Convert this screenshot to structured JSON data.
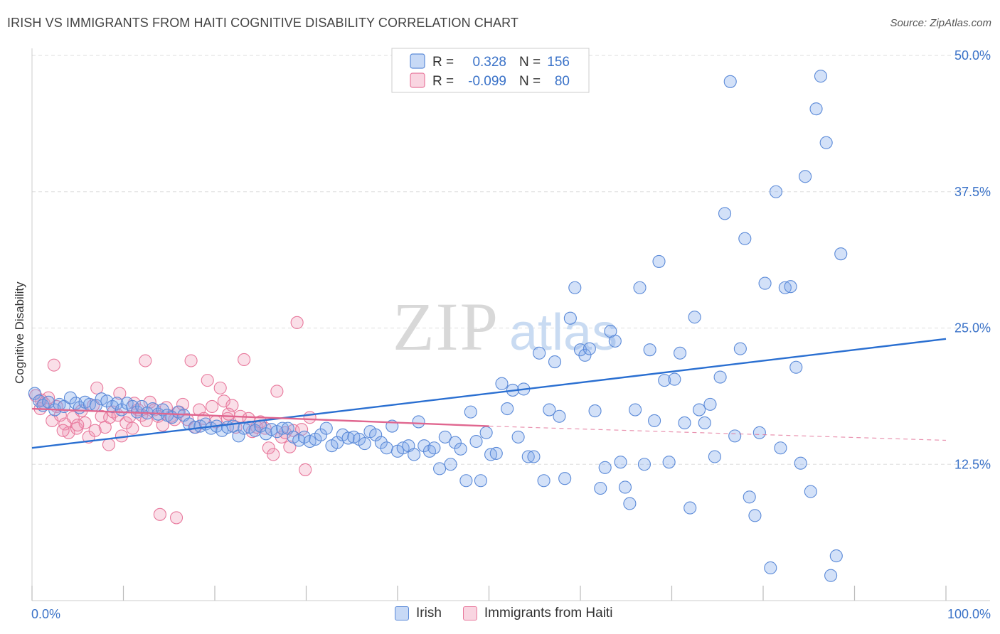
{
  "title": "IRISH VS IMMIGRANTS FROM HAITI COGNITIVE DISABILITY CORRELATION CHART",
  "source": "Source: ZipAtlas.com",
  "watermark": {
    "zip": "ZIP",
    "atlas": "atlas"
  },
  "colors": {
    "blue": "#5b8ad8",
    "blue_fill": "rgba(130,170,235,0.35)",
    "blue_line": "#2a6fd1",
    "pink": "#e8789c",
    "pink_fill": "rgba(240,150,180,0.30)",
    "pink_line": "#e0668f",
    "grid": "#dddddd",
    "tick_label": "#3a72c8"
  },
  "stats_legend": {
    "rows": [
      {
        "r_label": "R =",
        "r_value": "0.328",
        "n_label": "N =",
        "n_value": "156",
        "series": "blue"
      },
      {
        "r_label": "R =",
        "r_value": "-0.099",
        "n_label": "N =",
        "n_value": "80",
        "series": "pink"
      }
    ]
  },
  "chart_data": {
    "type": "scatter",
    "title": "IRISH VS IMMIGRANTS FROM HAITI COGNITIVE DISABILITY CORRELATION CHART",
    "ylabel": "Cognitive Disability",
    "xlim": [
      0,
      100
    ],
    "ylim": [
      0,
      50
    ],
    "x_tick_labels": [
      "0.0%",
      "100.0%"
    ],
    "y_ticks": [
      12.5,
      25.0,
      37.5,
      50.0
    ],
    "y_tick_labels": [
      "12.5%",
      "25.0%",
      "37.5%",
      "50.0%"
    ],
    "grid": true,
    "legend_placement": "bottom-center",
    "series": [
      {
        "name": "Irish",
        "color": "blue",
        "trend": {
          "x": [
            0,
            100
          ],
          "y": [
            14.0,
            24.0
          ]
        },
        "points": [
          [
            0.3,
            19.0
          ],
          [
            0.8,
            18.3
          ],
          [
            1.2,
            17.9
          ],
          [
            1.8,
            18.2
          ],
          [
            2.5,
            17.5
          ],
          [
            3.0,
            18.0
          ],
          [
            3.5,
            17.8
          ],
          [
            4.2,
            18.6
          ],
          [
            4.8,
            18.1
          ],
          [
            5.2,
            17.7
          ],
          [
            5.8,
            18.2
          ],
          [
            6.3,
            18.0
          ],
          [
            7.0,
            17.9
          ],
          [
            7.6,
            18.5
          ],
          [
            8.2,
            18.3
          ],
          [
            8.8,
            17.8
          ],
          [
            9.3,
            18.1
          ],
          [
            9.8,
            17.5
          ],
          [
            10.4,
            18.1
          ],
          [
            11.0,
            17.8
          ],
          [
            11.5,
            17.3
          ],
          [
            12.0,
            17.8
          ],
          [
            12.6,
            17.2
          ],
          [
            13.2,
            17.6
          ],
          [
            13.8,
            17.1
          ],
          [
            14.3,
            17.5
          ],
          [
            14.8,
            17.0
          ],
          [
            15.3,
            16.8
          ],
          [
            16.0,
            17.3
          ],
          [
            16.6,
            17.0
          ],
          [
            17.2,
            16.2
          ],
          [
            17.8,
            15.9
          ],
          [
            18.4,
            16.0
          ],
          [
            19.0,
            16.2
          ],
          [
            19.6,
            15.8
          ],
          [
            20.2,
            16.0
          ],
          [
            20.8,
            15.6
          ],
          [
            21.4,
            15.9
          ],
          [
            22.0,
            16.0
          ],
          [
            22.6,
            15.1
          ],
          [
            23.2,
            15.8
          ],
          [
            23.8,
            15.9
          ],
          [
            24.4,
            15.6
          ],
          [
            25.0,
            16.0
          ],
          [
            25.6,
            15.3
          ],
          [
            26.2,
            15.7
          ],
          [
            26.8,
            15.5
          ],
          [
            27.4,
            15.8
          ],
          [
            28.0,
            15.8
          ],
          [
            28.6,
            15.0
          ],
          [
            29.2,
            14.7
          ],
          [
            29.8,
            15.0
          ],
          [
            30.4,
            14.6
          ],
          [
            31.0,
            14.8
          ],
          [
            31.6,
            15.2
          ],
          [
            32.2,
            15.8
          ],
          [
            32.8,
            14.2
          ],
          [
            33.4,
            14.5
          ],
          [
            34.0,
            15.2
          ],
          [
            34.6,
            14.9
          ],
          [
            35.2,
            15.0
          ],
          [
            35.8,
            14.8
          ],
          [
            36.4,
            14.4
          ],
          [
            37.0,
            15.5
          ],
          [
            37.6,
            15.2
          ],
          [
            38.2,
            14.5
          ],
          [
            38.8,
            14.0
          ],
          [
            39.4,
            16.0
          ],
          [
            40.0,
            13.7
          ],
          [
            40.6,
            14.0
          ],
          [
            41.2,
            14.2
          ],
          [
            41.8,
            13.4
          ],
          [
            42.3,
            16.4
          ],
          [
            42.9,
            14.2
          ],
          [
            43.5,
            13.7
          ],
          [
            44.0,
            14.0
          ],
          [
            44.6,
            12.1
          ],
          [
            45.2,
            15.0
          ],
          [
            45.8,
            12.5
          ],
          [
            46.3,
            14.5
          ],
          [
            46.9,
            13.9
          ],
          [
            47.5,
            11.0
          ],
          [
            48.0,
            17.3
          ],
          [
            48.6,
            14.6
          ],
          [
            49.1,
            11.0
          ],
          [
            49.7,
            15.4
          ],
          [
            50.2,
            13.4
          ],
          [
            50.8,
            13.5
          ],
          [
            51.4,
            19.9
          ],
          [
            52.0,
            17.6
          ],
          [
            52.6,
            19.3
          ],
          [
            53.2,
            15.0
          ],
          [
            53.8,
            19.4
          ],
          [
            54.3,
            13.2
          ],
          [
            54.9,
            13.2
          ],
          [
            55.5,
            22.7
          ],
          [
            56.0,
            11.0
          ],
          [
            56.6,
            17.5
          ],
          [
            57.2,
            21.9
          ],
          [
            57.7,
            16.9
          ],
          [
            58.3,
            11.2
          ],
          [
            58.9,
            25.9
          ],
          [
            59.4,
            28.7
          ],
          [
            60.0,
            23.0
          ],
          [
            60.5,
            22.5
          ],
          [
            61.0,
            23.1
          ],
          [
            61.6,
            17.4
          ],
          [
            62.2,
            10.3
          ],
          [
            62.7,
            12.2
          ],
          [
            63.3,
            24.7
          ],
          [
            63.8,
            23.8
          ],
          [
            64.4,
            12.7
          ],
          [
            64.9,
            10.4
          ],
          [
            65.4,
            8.9
          ],
          [
            66.0,
            17.5
          ],
          [
            66.5,
            28.7
          ],
          [
            67.0,
            12.5
          ],
          [
            67.6,
            23.0
          ],
          [
            68.1,
            16.5
          ],
          [
            68.6,
            31.1
          ],
          [
            69.2,
            20.2
          ],
          [
            69.7,
            12.7
          ],
          [
            70.3,
            20.3
          ],
          [
            70.9,
            22.7
          ],
          [
            71.4,
            16.3
          ],
          [
            72.0,
            8.5
          ],
          [
            72.5,
            26.0
          ],
          [
            73.0,
            17.5
          ],
          [
            73.6,
            16.3
          ],
          [
            74.2,
            18.0
          ],
          [
            74.7,
            13.2
          ],
          [
            75.3,
            20.5
          ],
          [
            75.8,
            35.5
          ],
          [
            76.4,
            47.6
          ],
          [
            76.9,
            15.1
          ],
          [
            77.5,
            23.1
          ],
          [
            78.0,
            33.2
          ],
          [
            78.5,
            9.5
          ],
          [
            79.1,
            7.8
          ],
          [
            79.6,
            15.4
          ],
          [
            80.2,
            29.1
          ],
          [
            80.8,
            3.0
          ],
          [
            81.4,
            37.5
          ],
          [
            81.9,
            14.0
          ],
          [
            82.4,
            28.7
          ],
          [
            83.0,
            28.8
          ],
          [
            83.6,
            21.4
          ],
          [
            84.1,
            12.6
          ],
          [
            84.6,
            38.9
          ],
          [
            85.2,
            10.0
          ],
          [
            85.8,
            45.1
          ],
          [
            86.3,
            48.1
          ],
          [
            86.9,
            42.0
          ],
          [
            87.4,
            2.3
          ],
          [
            88.0,
            4.1
          ],
          [
            88.5,
            31.8
          ]
        ]
      },
      {
        "name": "Immigrants from Haiti",
        "color": "pink",
        "trend": {
          "x": [
            0,
            50
          ],
          "y": [
            17.6,
            16.0
          ]
        },
        "trend_dashed": {
          "x": [
            50,
            100
          ],
          "y": [
            16.0,
            14.7
          ]
        },
        "points": [
          [
            0.4,
            18.8
          ],
          [
            0.9,
            17.6
          ],
          [
            1.3,
            18.1
          ],
          [
            1.8,
            18.6
          ],
          [
            2.2,
            16.5
          ],
          [
            2.7,
            17.8
          ],
          [
            3.1,
            17.0
          ],
          [
            3.6,
            16.2
          ],
          [
            4.0,
            15.4
          ],
          [
            4.5,
            16.8
          ],
          [
            4.9,
            15.8
          ],
          [
            5.4,
            17.4
          ],
          [
            5.8,
            16.3
          ],
          [
            6.2,
            15.0
          ],
          [
            6.7,
            17.9
          ],
          [
            7.1,
            19.5
          ],
          [
            7.6,
            16.9
          ],
          [
            8.0,
            15.9
          ],
          [
            8.5,
            16.8
          ],
          [
            8.9,
            17.3
          ],
          [
            9.4,
            17.0
          ],
          [
            9.8,
            15.1
          ],
          [
            10.3,
            16.3
          ],
          [
            10.7,
            16.9
          ],
          [
            11.2,
            18.1
          ],
          [
            11.6,
            17.5
          ],
          [
            12.0,
            17.0
          ],
          [
            12.5,
            16.5
          ],
          [
            12.9,
            18.2
          ],
          [
            13.4,
            17.5
          ],
          [
            13.8,
            16.9
          ],
          [
            14.3,
            16.1
          ],
          [
            14.7,
            17.7
          ],
          [
            15.2,
            16.9
          ],
          [
            15.6,
            16.6
          ],
          [
            16.1,
            17.3
          ],
          [
            16.5,
            18.0
          ],
          [
            17.0,
            16.6
          ],
          [
            17.4,
            22.0
          ],
          [
            17.9,
            15.9
          ],
          [
            18.3,
            17.5
          ],
          [
            18.8,
            16.7
          ],
          [
            19.2,
            20.2
          ],
          [
            19.7,
            17.8
          ],
          [
            20.1,
            16.4
          ],
          [
            20.6,
            19.5
          ],
          [
            21.0,
            18.3
          ],
          [
            21.4,
            16.7
          ],
          [
            21.9,
            17.9
          ],
          [
            22.3,
            15.9
          ],
          [
            22.8,
            16.9
          ],
          [
            23.2,
            22.1
          ],
          [
            23.7,
            16.7
          ],
          [
            24.1,
            15.5
          ],
          [
            24.6,
            15.9
          ],
          [
            25.0,
            16.4
          ],
          [
            25.5,
            15.8
          ],
          [
            25.9,
            14.0
          ],
          [
            26.4,
            13.4
          ],
          [
            26.8,
            19.2
          ],
          [
            27.3,
            15.0
          ],
          [
            27.7,
            15.4
          ],
          [
            28.2,
            14.1
          ],
          [
            28.6,
            15.6
          ],
          [
            29.0,
            25.5
          ],
          [
            29.5,
            15.7
          ],
          [
            29.9,
            12.0
          ],
          [
            30.4,
            16.8
          ],
          [
            1.0,
            18.4
          ],
          [
            2.4,
            21.6
          ],
          [
            3.4,
            15.6
          ],
          [
            5.0,
            16.1
          ],
          [
            6.9,
            15.6
          ],
          [
            8.4,
            14.3
          ],
          [
            9.6,
            19.0
          ],
          [
            11.0,
            15.8
          ],
          [
            12.4,
            22.0
          ],
          [
            14.0,
            7.9
          ],
          [
            15.8,
            7.6
          ],
          [
            21.5,
            17.1
          ]
        ]
      }
    ]
  }
}
